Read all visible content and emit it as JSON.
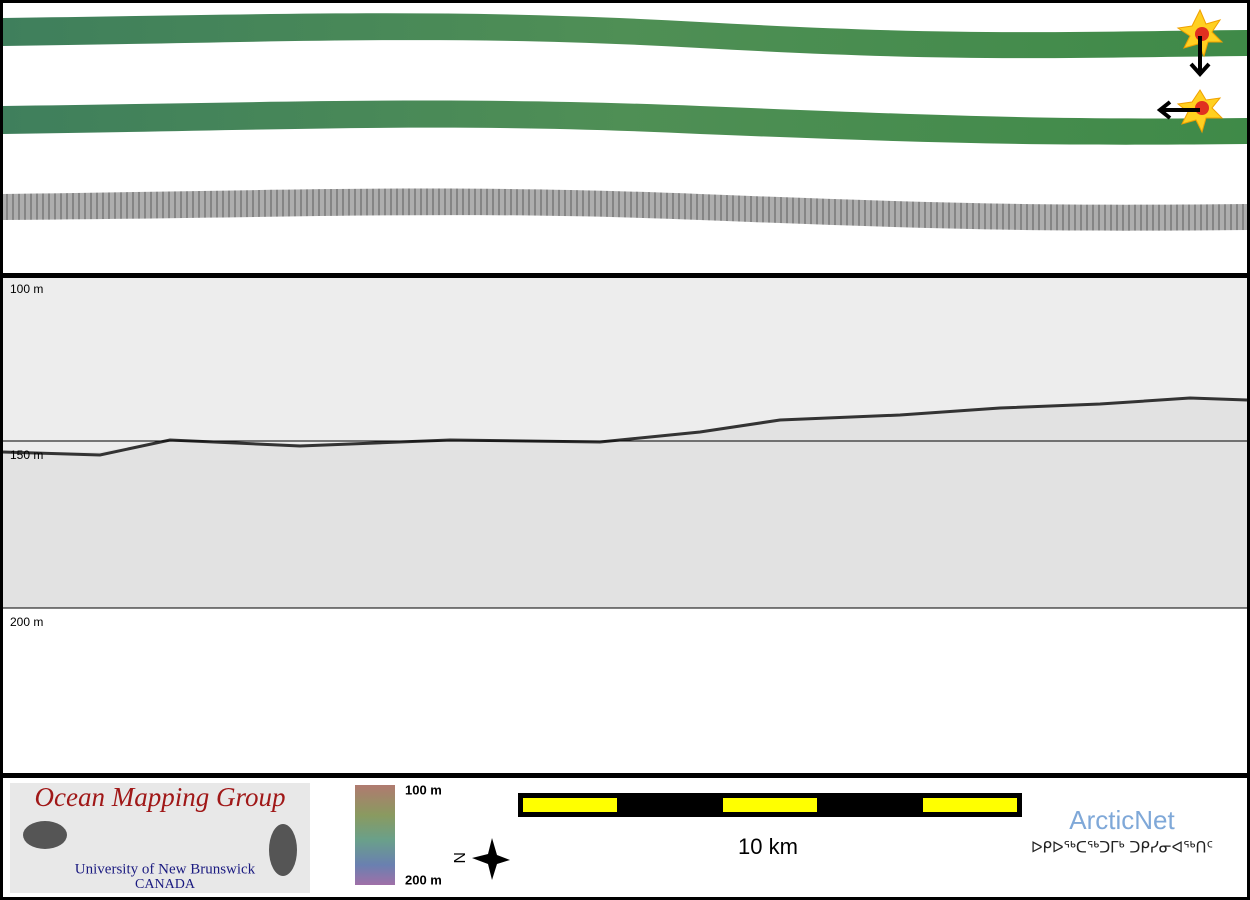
{
  "profile": {
    "depth_labels": [
      "100 m",
      "150 m",
      "200 m"
    ]
  },
  "footer": {
    "logo": {
      "title": "Ocean Mapping Group",
      "university": "University of New Brunswick",
      "country": "CANADA"
    },
    "colorbar": {
      "top_label": "100 m",
      "bottom_label": "200 m"
    },
    "north_label": "N",
    "scale_label": "10 km",
    "partner": {
      "name": "ArcticNet",
      "syllabics": "ᐅᑭᐅᖅᑕᖅᑐᒥᒃ ᑐᑭᓯᓂᐊᖅᑎᑦ"
    }
  }
}
